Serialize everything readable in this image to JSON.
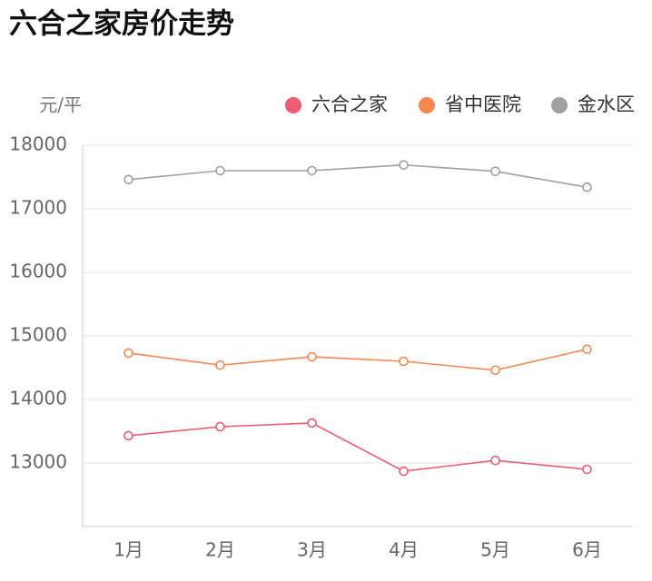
{
  "chart_data": {
    "type": "line",
    "title": "六合之家房价走势",
    "y_label": "元/平",
    "categories": [
      "1月",
      "2月",
      "3月",
      "4月",
      "5月",
      "6月"
    ],
    "series": [
      {
        "name": "六合之家",
        "color": "#ef5b70",
        "values": [
          13430,
          13570,
          13630,
          12870,
          13040,
          12900
        ]
      },
      {
        "name": "省中医院",
        "color": "#f5874f",
        "values": [
          14730,
          14540,
          14670,
          14600,
          14460,
          14790
        ]
      },
      {
        "name": "金水区",
        "color": "#a0a0a0",
        "values": [
          17460,
          17600,
          17600,
          17690,
          17590,
          17340
        ]
      }
    ],
    "ylim": [
      12000,
      18000
    ],
    "yticks": [
      13000,
      14000,
      15000,
      16000,
      17000,
      18000
    ],
    "grid": true,
    "legend": "top-right"
  }
}
